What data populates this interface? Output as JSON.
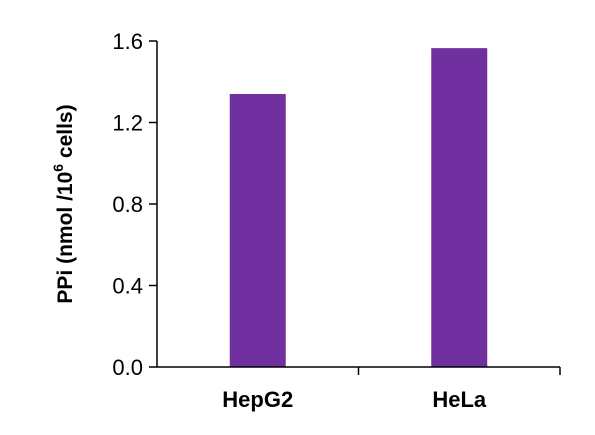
{
  "chart_data": {
    "type": "bar",
    "categories": [
      "HepG2",
      "HeLa"
    ],
    "values": [
      1.34,
      1.565
    ],
    "ylabel": {
      "prefix": "PPi (nmol /10",
      "superscript": "6",
      "suffix": " cells)"
    },
    "ylim": [
      0,
      1.6
    ],
    "yticks": [
      "0.0",
      "0.4",
      "0.8",
      "1.2",
      "1.6"
    ],
    "grid": false,
    "legend": "none",
    "bar_color": "#7030a0",
    "axis_color": "#000000"
  }
}
